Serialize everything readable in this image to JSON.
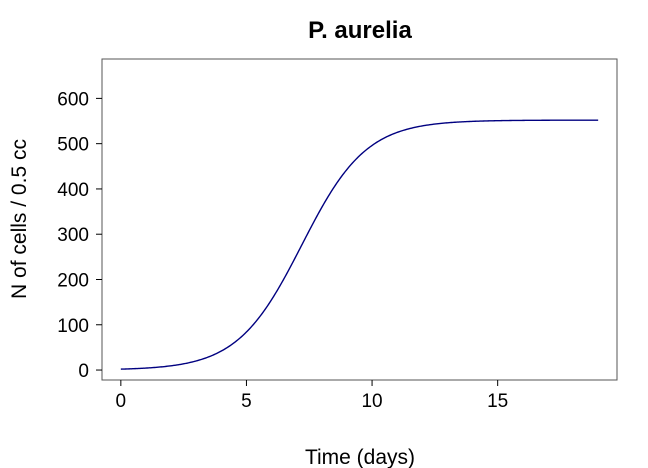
{
  "chart_data": {
    "type": "line",
    "title": "P. aurelia",
    "xlabel": "Time (days)",
    "ylabel": "N of cells / 0.5 cc",
    "xlim": [
      -0.75,
      19.75
    ],
    "ylim": [
      -22,
      687
    ],
    "xticks": [
      0,
      5,
      10,
      15
    ],
    "yticks": [
      0,
      100,
      200,
      300,
      400,
      500,
      600
    ],
    "grid": false,
    "series": [
      {
        "color": "#000080",
        "model": "logistic",
        "K": 552,
        "N0": 2,
        "r": 0.78,
        "x_range": [
          0,
          19
        ]
      }
    ]
  }
}
